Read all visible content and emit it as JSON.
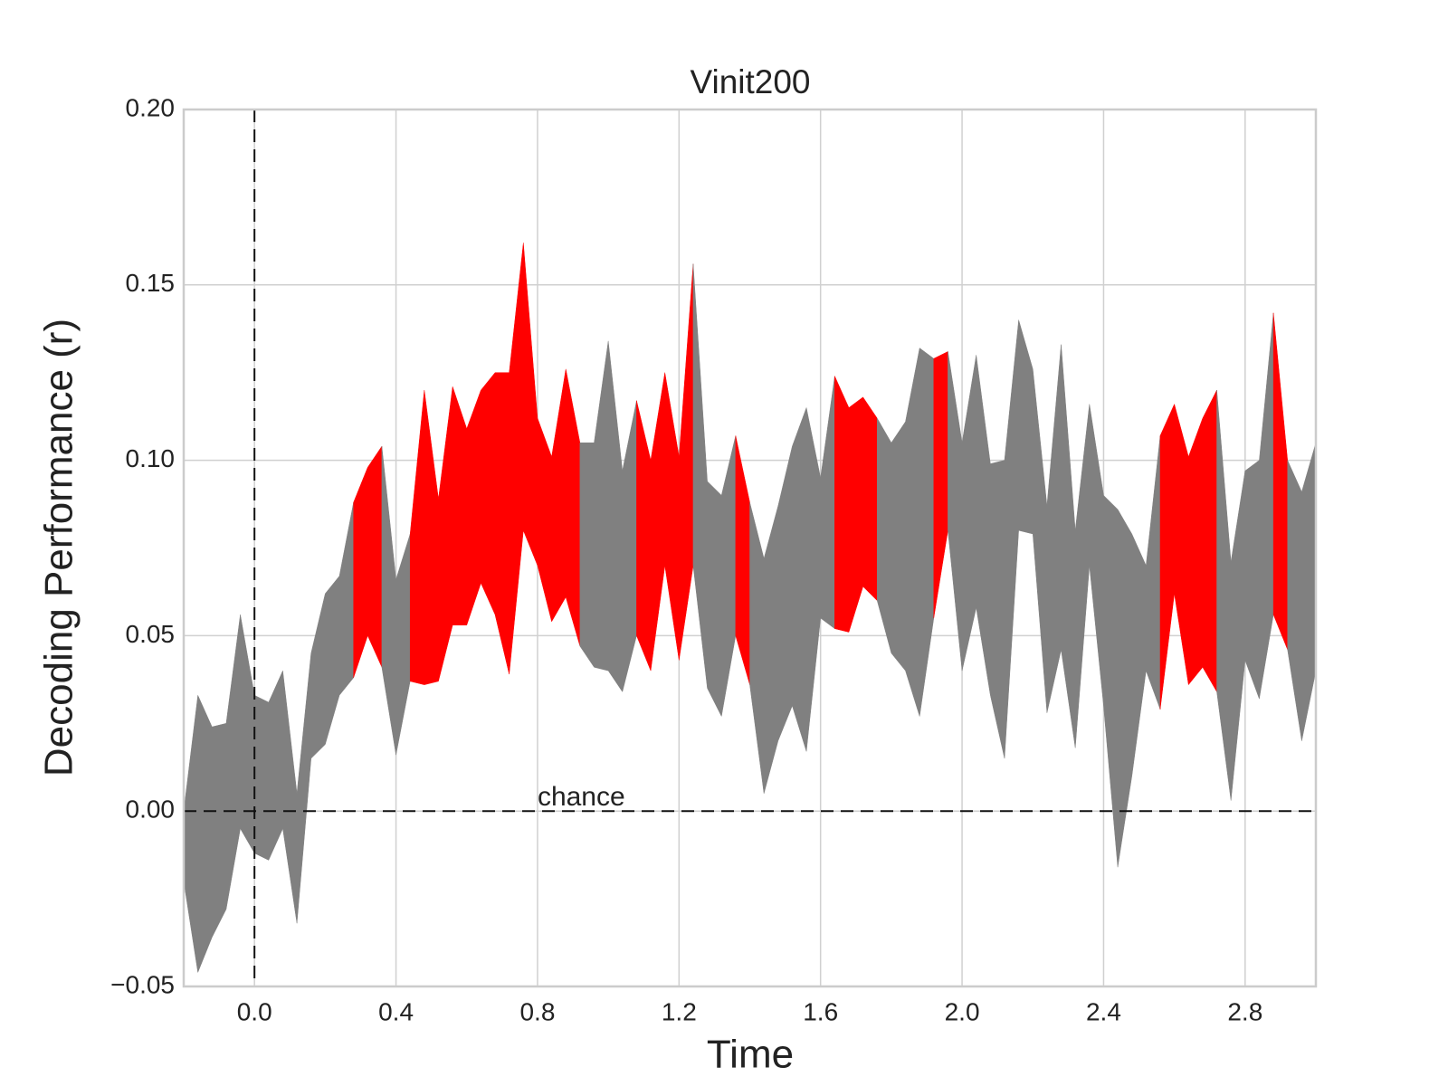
{
  "chart_data": {
    "type": "band",
    "title": "Vinit200",
    "x_label": "Time",
    "y_label": "Decoding Performance (r)",
    "x": [
      -0.2,
      -0.16,
      -0.12,
      -0.08,
      -0.04,
      0.0,
      0.04,
      0.08,
      0.12,
      0.16,
      0.2,
      0.24,
      0.28,
      0.32,
      0.36,
      0.4,
      0.44,
      0.48,
      0.52,
      0.56,
      0.6,
      0.64,
      0.68,
      0.72,
      0.76,
      0.8,
      0.84,
      0.88,
      0.92,
      0.96,
      1.0,
      1.04,
      1.08,
      1.12,
      1.16,
      1.2,
      1.24,
      1.28,
      1.32,
      1.36,
      1.4,
      1.44,
      1.48,
      1.52,
      1.56,
      1.6,
      1.64,
      1.68,
      1.72,
      1.76,
      1.8,
      1.84,
      1.88,
      1.92,
      1.96,
      2.0,
      2.04,
      2.08,
      2.12,
      2.16,
      2.2,
      2.24,
      2.28,
      2.32,
      2.36,
      2.4,
      2.44,
      2.48,
      2.52,
      2.56,
      2.6,
      2.64,
      2.68,
      2.72,
      2.76,
      2.8,
      2.84,
      2.88,
      2.92,
      2.96,
      3.0
    ],
    "lower": [
      -0.02,
      -0.046,
      -0.036,
      -0.028,
      -0.005,
      -0.012,
      -0.014,
      -0.005,
      -0.032,
      0.015,
      0.019,
      0.033,
      0.038,
      0.05,
      0.041,
      0.016,
      0.037,
      0.036,
      0.037,
      0.053,
      0.053,
      0.065,
      0.056,
      0.039,
      0.08,
      0.07,
      0.054,
      0.061,
      0.047,
      0.041,
      0.04,
      0.034,
      0.05,
      0.04,
      0.07,
      0.043,
      0.07,
      0.035,
      0.027,
      0.05,
      0.036,
      0.005,
      0.02,
      0.03,
      0.017,
      0.055,
      0.052,
      0.051,
      0.064,
      0.06,
      0.045,
      0.04,
      0.027,
      0.055,
      0.08,
      0.04,
      0.058,
      0.033,
      0.015,
      0.08,
      0.079,
      0.028,
      0.046,
      0.018,
      0.07,
      0.03,
      -0.016,
      0.01,
      0.04,
      0.029,
      0.062,
      0.036,
      0.041,
      0.034,
      0.003,
      0.043,
      0.032,
      0.056,
      0.046,
      0.02,
      0.04
    ],
    "upper": [
      0.0,
      0.033,
      0.024,
      0.025,
      0.056,
      0.033,
      0.031,
      0.04,
      0.005,
      0.045,
      0.062,
      0.067,
      0.088,
      0.098,
      0.104,
      0.066,
      0.079,
      0.12,
      0.089,
      0.121,
      0.109,
      0.12,
      0.125,
      0.125,
      0.162,
      0.112,
      0.101,
      0.126,
      0.105,
      0.105,
      0.134,
      0.097,
      0.117,
      0.1,
      0.125,
      0.101,
      0.156,
      0.094,
      0.09,
      0.107,
      0.088,
      0.072,
      0.087,
      0.104,
      0.115,
      0.095,
      0.124,
      0.115,
      0.118,
      0.112,
      0.105,
      0.111,
      0.132,
      0.129,
      0.131,
      0.105,
      0.13,
      0.099,
      0.1,
      0.14,
      0.126,
      0.087,
      0.133,
      0.08,
      0.116,
      0.09,
      0.086,
      0.079,
      0.07,
      0.107,
      0.116,
      0.101,
      0.112,
      0.12,
      0.071,
      0.097,
      0.1,
      0.142,
      0.1,
      0.091,
      0.105
    ],
    "significant": [
      false,
      false,
      false,
      false,
      false,
      false,
      false,
      false,
      false,
      false,
      false,
      false,
      true,
      true,
      true,
      false,
      true,
      true,
      true,
      true,
      true,
      true,
      true,
      true,
      true,
      true,
      true,
      true,
      true,
      false,
      false,
      false,
      true,
      true,
      true,
      true,
      true,
      false,
      false,
      true,
      true,
      false,
      false,
      false,
      false,
      false,
      true,
      true,
      true,
      true,
      false,
      false,
      false,
      true,
      true,
      false,
      false,
      false,
      false,
      false,
      false,
      false,
      false,
      false,
      false,
      false,
      false,
      false,
      false,
      true,
      true,
      true,
      true,
      true,
      false,
      false,
      false,
      true,
      true,
      false,
      false
    ],
    "color": "#808080",
    "significant_color": "#ff0000",
    "chance_level": 0.0,
    "chance_label": "chance",
    "chance_label_x": 0.8,
    "onset": 0.0,
    "xlim": [
      -0.2,
      3.0
    ],
    "ylim": [
      -0.05,
      0.2
    ],
    "xticks": [
      {
        "value": 0.0,
        "label": "0.0"
      },
      0.4,
      0.8,
      1.2,
      1.6,
      {
        "value": 2.0,
        "label": "2.0"
      },
      2.4,
      2.8
    ],
    "yticks": [
      {
        "value": -0.05,
        "label": "−0.05"
      },
      {
        "value": 0.0,
        "label": "0.00"
      },
      0.05,
      {
        "value": 0.1,
        "label": "0.10"
      },
      0.15,
      {
        "value": 0.2,
        "label": "0.20"
      }
    ],
    "grid": true
  }
}
